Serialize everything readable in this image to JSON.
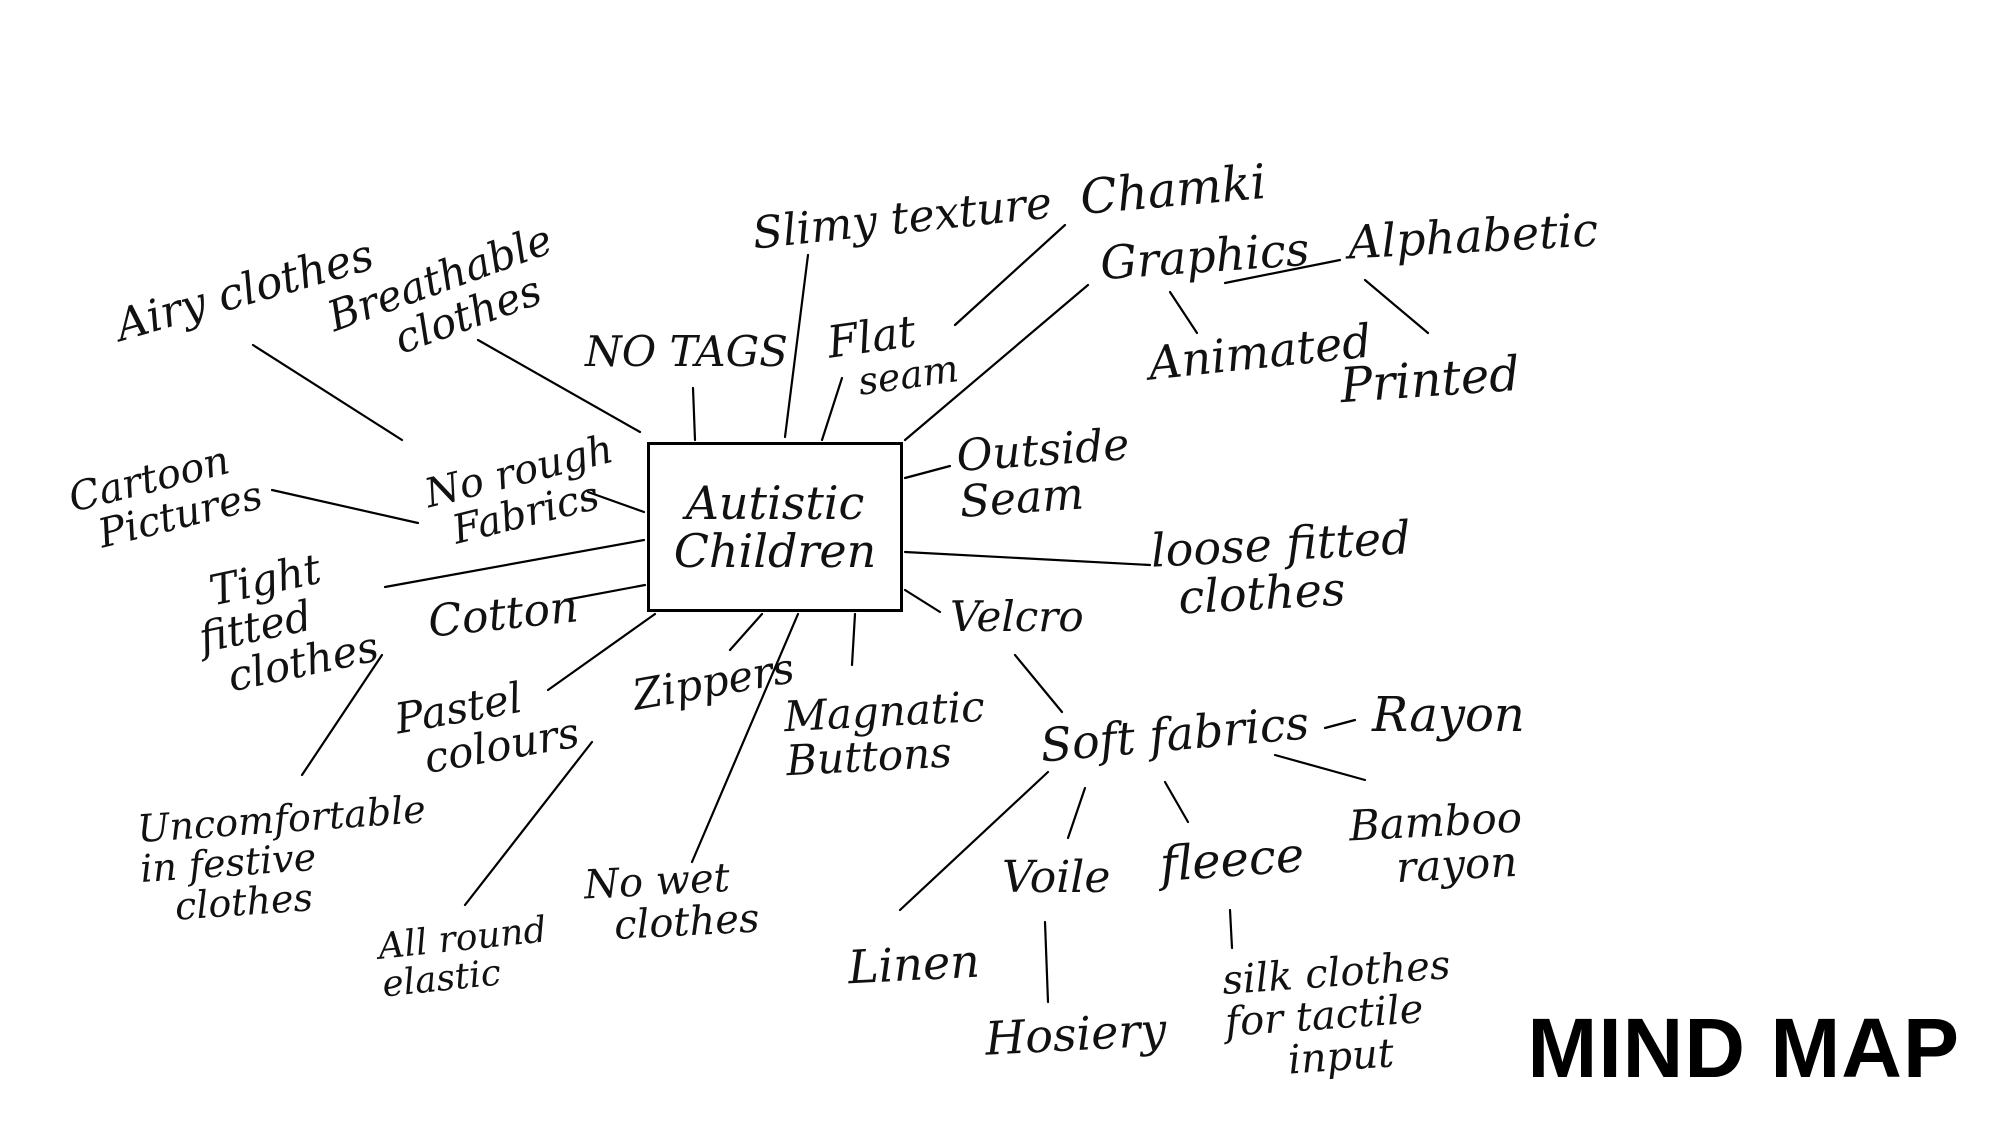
{
  "title": "MIND MAP",
  "center": {
    "line1": "Autistic",
    "line2": "Children"
  },
  "nodes": {
    "airy_clothes": "Airy clothes",
    "breathable_clothes_1": "Breathable",
    "breathable_clothes_2": "clothes",
    "no_tags": "NO TAGS",
    "slimy_texture": "Slimy texture",
    "chamki": "Chamki",
    "graphics": "Graphics",
    "alphabetic": "Alphabetic",
    "animated": "Animated",
    "printed": "Printed",
    "flat_seam_1": "Flat",
    "flat_seam_2": "seam",
    "outside_seam_1": "Outside",
    "outside_seam_2": "Seam",
    "loose_fitted_1": "loose fitted",
    "loose_fitted_2": "clothes",
    "velcro": "Velcro",
    "soft_fabrics": "Soft fabrics",
    "rayon": "Rayon",
    "bamboo_rayon_1": "Bamboo",
    "bamboo_rayon_2": "rayon",
    "fleece": "fleece",
    "voile": "Voile",
    "linen": "Linen",
    "hosiery": "Hosiery",
    "silk_1": "silk clothes",
    "silk_2": "for tactile",
    "silk_3": "input",
    "magnetic_buttons_1": "Magnatic",
    "magnetic_buttons_2": "Buttons",
    "zippers": "Zippers",
    "no_wet_1": "No wet",
    "no_wet_2": "clothes",
    "all_round_elastic_1": "All round",
    "all_round_elastic_2": "elastic",
    "pastel_colours_1": "Pastel",
    "pastel_colours_2": "colours",
    "cotton": "Cotton",
    "uncomfortable_1": "Uncomfortable",
    "uncomfortable_2": "in festive",
    "uncomfortable_3": "clothes",
    "tight_fitted_1": "Tight",
    "tight_fitted_2": "fitted",
    "tight_fitted_3": "clothes",
    "no_rough_1": "No rough",
    "no_rough_2": "Fabrics",
    "cartoon_1": "Cartoon",
    "cartoon_2": "Pictures"
  }
}
